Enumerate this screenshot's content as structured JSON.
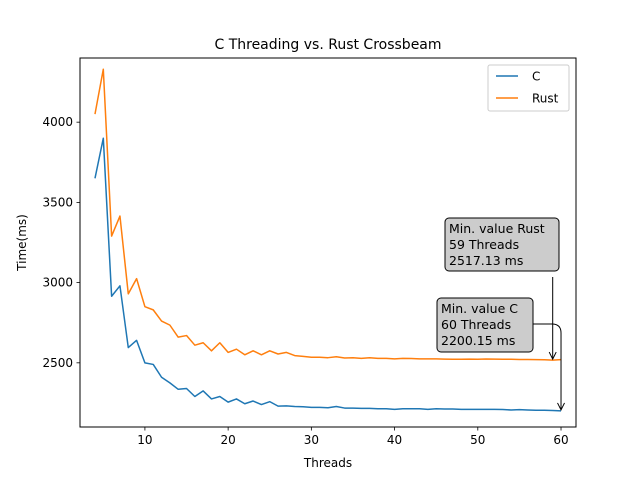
{
  "chart_data": {
    "type": "line",
    "title": "C Threading vs. Rust Crossbeam",
    "xlabel": "Threads",
    "ylabel": "Time(ms)",
    "xlim": [
      2.2,
      61.8
    ],
    "ylim": [
      2100,
      4400
    ],
    "xticks": [
      10,
      20,
      30,
      40,
      50,
      60
    ],
    "yticks": [
      2500,
      3000,
      3500,
      4000
    ],
    "grid": false,
    "legend_position": "top-right",
    "x": [
      4,
      5,
      6,
      7,
      8,
      9,
      10,
      11,
      12,
      13,
      14,
      15,
      16,
      17,
      18,
      19,
      20,
      21,
      22,
      23,
      24,
      25,
      26,
      27,
      28,
      29,
      30,
      31,
      32,
      33,
      34,
      35,
      36,
      37,
      38,
      39,
      40,
      41,
      42,
      43,
      44,
      45,
      46,
      47,
      48,
      49,
      50,
      51,
      52,
      53,
      54,
      55,
      56,
      57,
      58,
      59,
      60
    ],
    "series": [
      {
        "name": "C",
        "color": "#1f77b4",
        "values": [
          3650,
          3900,
          2915,
          2980,
          2595,
          2640,
          2500,
          2490,
          2410,
          2375,
          2335,
          2340,
          2290,
          2325,
          2275,
          2290,
          2255,
          2275,
          2245,
          2262,
          2240,
          2258,
          2230,
          2232,
          2228,
          2226,
          2222,
          2222,
          2220,
          2228,
          2218,
          2218,
          2216,
          2216,
          2214,
          2214,
          2210,
          2214,
          2214,
          2214,
          2210,
          2214,
          2212,
          2212,
          2210,
          2210,
          2210,
          2210,
          2210,
          2209,
          2206,
          2208,
          2206,
          2204,
          2204,
          2203,
          2200.15
        ]
      },
      {
        "name": "Rust",
        "color": "#ff7f0e",
        "values": [
          4050,
          4330,
          3290,
          3415,
          2930,
          3025,
          2850,
          2830,
          2760,
          2735,
          2660,
          2670,
          2610,
          2625,
          2575,
          2625,
          2565,
          2585,
          2550,
          2575,
          2550,
          2575,
          2555,
          2565,
          2545,
          2540,
          2535,
          2535,
          2532,
          2538,
          2530,
          2532,
          2528,
          2532,
          2528,
          2528,
          2525,
          2528,
          2527,
          2525,
          2525,
          2525,
          2523,
          2522,
          2522,
          2523,
          2522,
          2524,
          2523,
          2522,
          2522,
          2521,
          2521,
          2520,
          2519,
          2517.13,
          2520
        ]
      }
    ],
    "annotations": [
      {
        "lines": [
          "Min. value Rust",
          "59 Threads",
          "2517.13 ms"
        ],
        "point": [
          59,
          2517.13
        ]
      },
      {
        "lines": [
          "Min. value C",
          "60 Threads",
          "2200.15 ms"
        ],
        "point": [
          60,
          2200.15
        ]
      }
    ]
  }
}
